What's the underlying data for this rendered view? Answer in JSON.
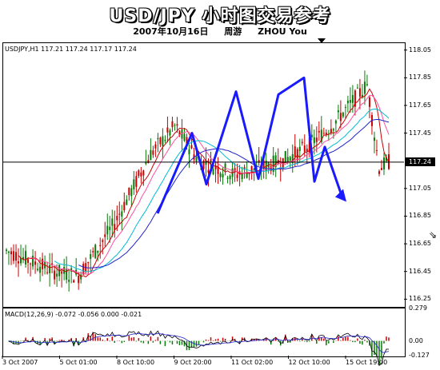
{
  "header": {
    "title": "USD/JPY 小时图交易参考",
    "date": "2007年10月16日",
    "author_cn": "周游",
    "author_en": "ZHOU You"
  },
  "chart_data": [
    {
      "type": "candlestick",
      "symbol_label": "USDJPY,H1  117.21 117.24 117.17 117.24",
      "current_price_label": "117.24",
      "y_ticks": [
        "118.05",
        "117.85",
        "117.65",
        "117.45",
        "117.24",
        "117.05",
        "116.85",
        "116.65",
        "116.45",
        "116.25"
      ],
      "ylim": [
        116.2,
        118.1
      ],
      "x_ticks": [
        "3 Oct 2007",
        "5 Oct 01:00",
        "8 Oct 10:00",
        "9 Oct 20:00",
        "11 Oct 02:00",
        "12 Oct 10:00",
        "15 Oct 19:00"
      ],
      "horizontal_line": 117.24,
      "wave_path": [
        116.87,
        117.45,
        117.08,
        117.75,
        117.12,
        117.7,
        117.12,
        117.85,
        117.1,
        117.35,
        117.0
      ]
    },
    {
      "type": "bar",
      "indicator_label": "MACD(12,26,9) -0.072 -0.056 0.000 -0.021",
      "y_ticks": [
        "0.279",
        "0.00",
        "-0.127"
      ],
      "ylim": [
        -0.127,
        0.279
      ]
    }
  ],
  "colors": {
    "wave": "#1a1aff",
    "up_candle": "#0a7a0a",
    "down_candle": "#cc0000",
    "ma_cyan": "#00bcd4",
    "ma_pink": "#ff4fa0",
    "ma_red": "#cc0000",
    "ma_blue": "#2222cc"
  }
}
